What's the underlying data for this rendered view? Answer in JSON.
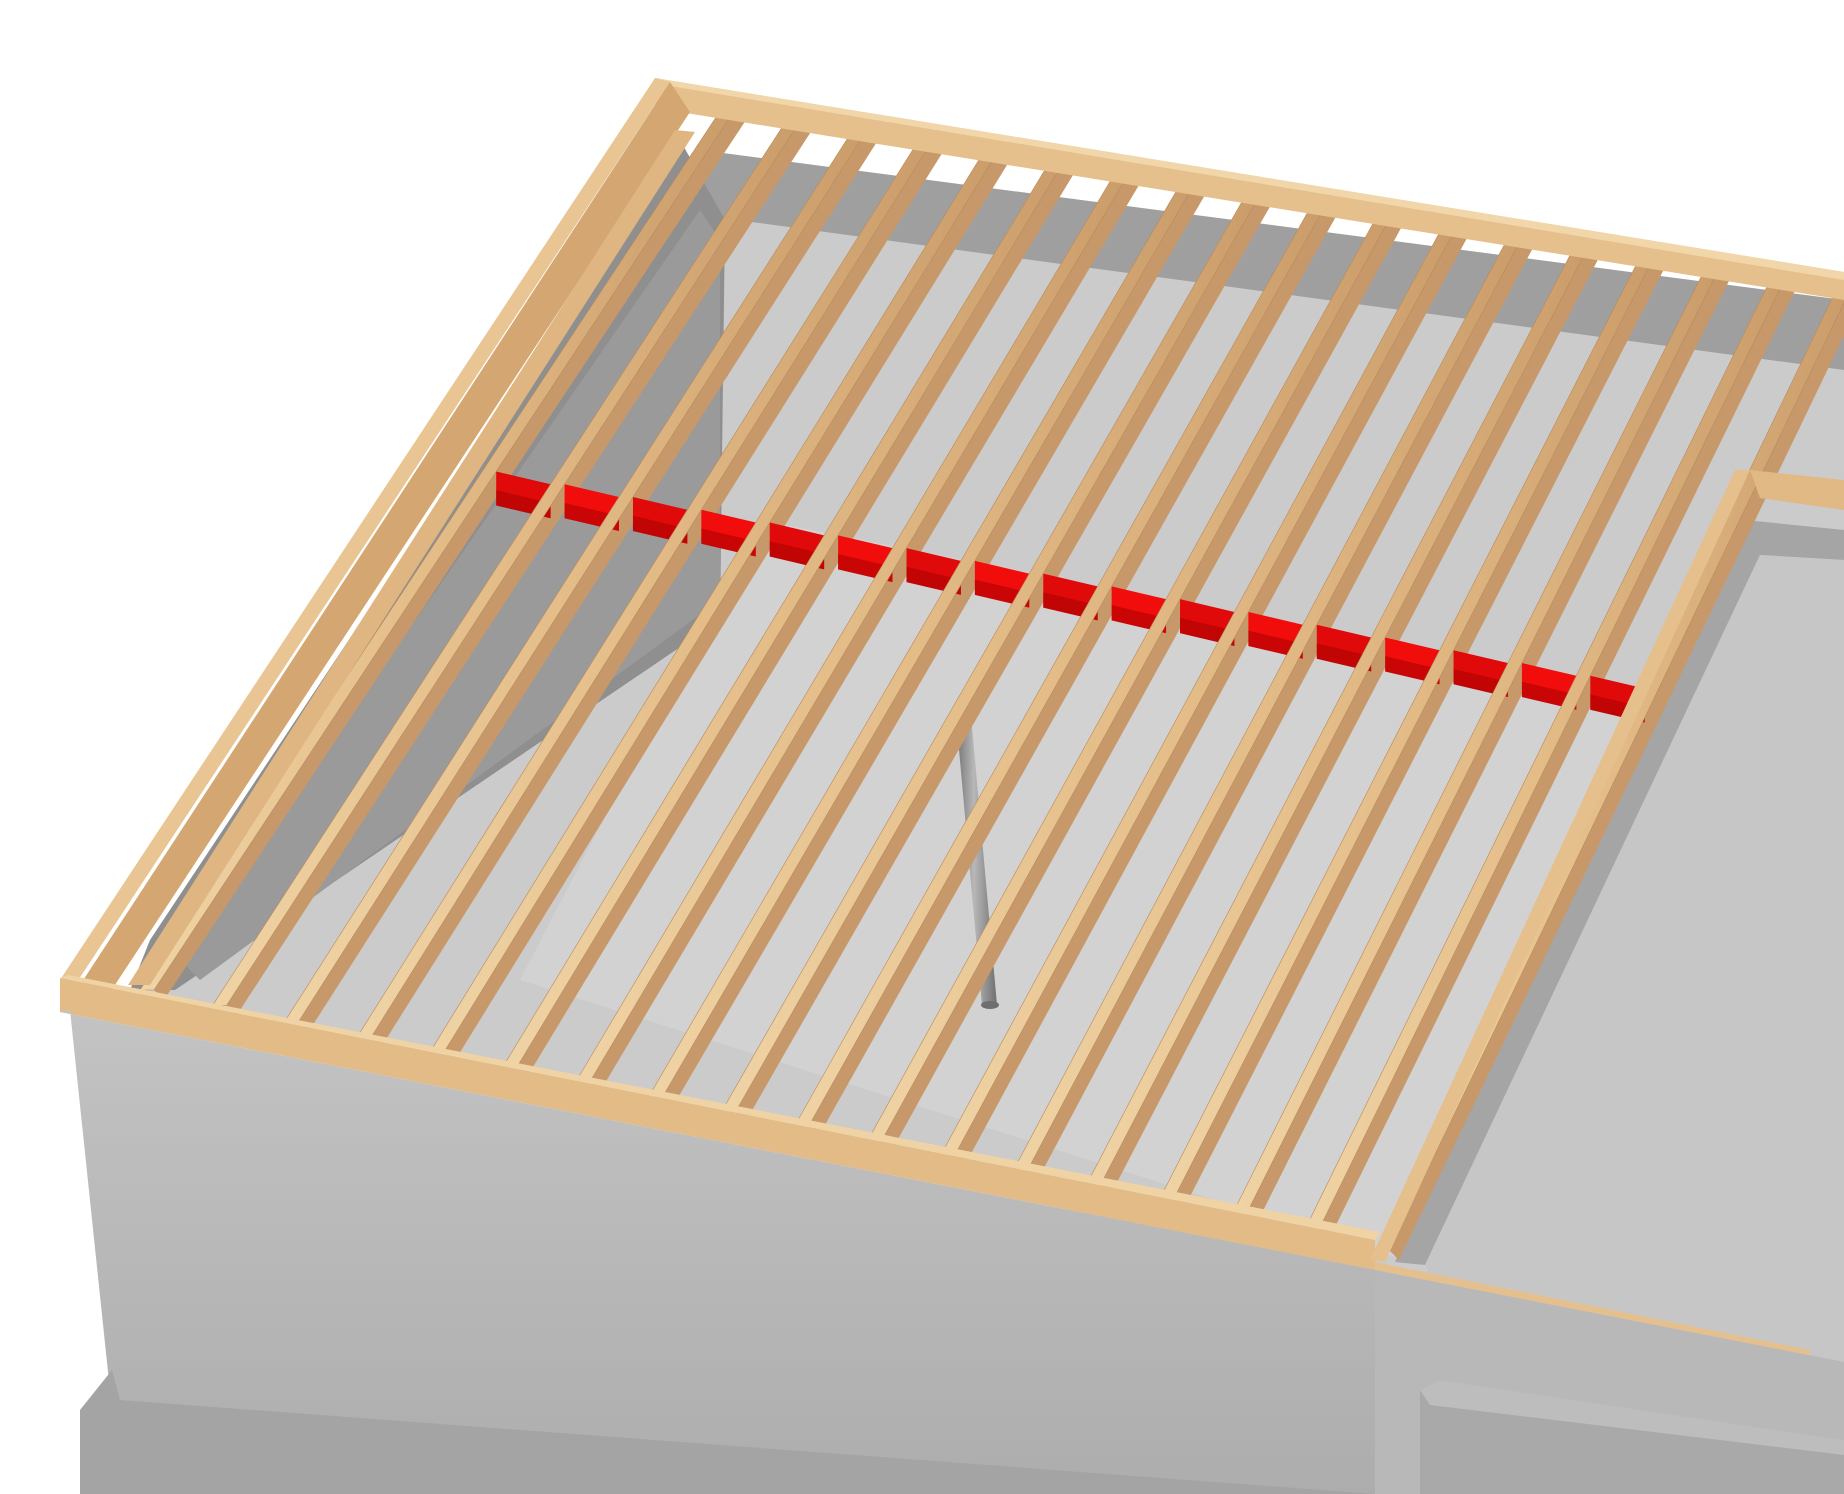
{
  "scene": {
    "view": "3D framing view",
    "elements": {
      "foundation": "concrete-foundation",
      "rim_joists": "wood-rim-joists",
      "floor_joists": "wood-floor-joists",
      "blocking": "solid-blocking-row",
      "support_post": "steel-post",
      "slab": "concrete-slab"
    },
    "joist_count": 18,
    "blocking_count": 16
  },
  "colors": {
    "background": "#ffffff",
    "wood_light": "#e9c592",
    "wood_mid": "#d7ad79",
    "wood_dark": "#c39564",
    "concrete_light": "#c8c8c8",
    "concrete_mid": "#b3b3b3",
    "concrete_dark": "#8e8e8e",
    "slab": "#c9c9c9",
    "blocking": "#e10a0a",
    "blocking_dark": "#a80000",
    "post": "#8a8a8a"
  }
}
